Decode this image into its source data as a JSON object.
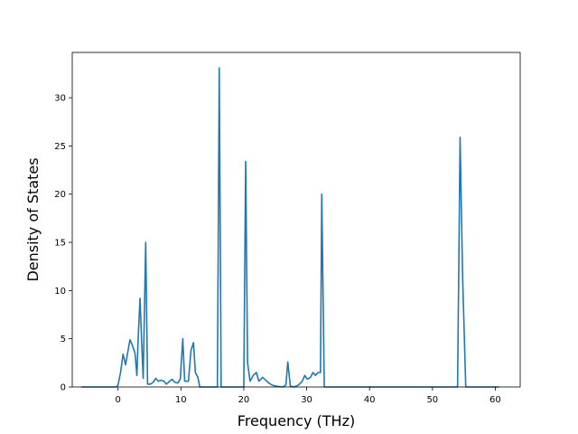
{
  "chart_data": {
    "type": "line",
    "title": "",
    "xlabel": "Frequency (THz)",
    "ylabel": "Density of States",
    "xlim": [
      -7.28,
      63.96
    ],
    "ylim": [
      0,
      34.7
    ],
    "xticks": [
      0,
      10,
      20,
      30,
      40,
      50,
      60
    ],
    "yticks": [
      0,
      5,
      10,
      15,
      20,
      25,
      30
    ],
    "grid": false,
    "legend": "none",
    "series": [
      {
        "color": "#1f77b4",
        "points": [
          [
            -5.8,
            0.0
          ],
          [
            -0.3,
            0.0
          ],
          [
            0.0,
            0.2
          ],
          [
            0.4,
            1.5
          ],
          [
            0.8,
            3.4
          ],
          [
            1.2,
            2.3
          ],
          [
            1.6,
            3.8
          ],
          [
            1.9,
            4.9
          ],
          [
            2.3,
            4.3
          ],
          [
            2.7,
            3.5
          ],
          [
            3.0,
            1.2
          ],
          [
            3.2,
            5.0
          ],
          [
            3.5,
            9.2
          ],
          [
            3.8,
            4.0
          ],
          [
            4.0,
            0.9
          ],
          [
            4.4,
            15.0
          ],
          [
            4.7,
            0.3
          ],
          [
            5.2,
            0.3
          ],
          [
            5.6,
            0.5
          ],
          [
            6.0,
            0.9
          ],
          [
            6.4,
            0.6
          ],
          [
            6.8,
            0.7
          ],
          [
            7.3,
            0.6
          ],
          [
            7.7,
            0.3
          ],
          [
            8.2,
            0.6
          ],
          [
            8.6,
            0.8
          ],
          [
            9.0,
            0.5
          ],
          [
            9.5,
            0.4
          ],
          [
            9.9,
            0.8
          ],
          [
            10.3,
            5.0
          ],
          [
            10.6,
            0.6
          ],
          [
            11.2,
            0.6
          ],
          [
            11.6,
            3.8
          ],
          [
            12.0,
            4.6
          ],
          [
            12.3,
            1.5
          ],
          [
            12.7,
            1.0
          ],
          [
            13.0,
            0.0
          ],
          [
            15.8,
            0.0
          ],
          [
            16.1,
            33.1
          ],
          [
            16.4,
            0.0
          ],
          [
            20.0,
            0.0
          ],
          [
            20.3,
            23.4
          ],
          [
            20.6,
            2.5
          ],
          [
            21.0,
            0.6
          ],
          [
            21.5,
            1.2
          ],
          [
            22.0,
            1.5
          ],
          [
            22.4,
            0.6
          ],
          [
            23.0,
            1.0
          ],
          [
            23.5,
            0.7
          ],
          [
            24.0,
            0.4
          ],
          [
            24.5,
            0.2
          ],
          [
            25.0,
            0.1
          ],
          [
            26.2,
            0.0
          ],
          [
            26.7,
            0.2
          ],
          [
            27.0,
            2.6
          ],
          [
            27.4,
            0.1
          ],
          [
            28.0,
            0.0
          ],
          [
            28.7,
            0.2
          ],
          [
            29.3,
            0.6
          ],
          [
            29.7,
            1.2
          ],
          [
            30.1,
            0.8
          ],
          [
            30.6,
            1.0
          ],
          [
            31.0,
            1.5
          ],
          [
            31.4,
            1.2
          ],
          [
            31.8,
            1.5
          ],
          [
            32.2,
            1.5
          ],
          [
            32.4,
            20.0
          ],
          [
            32.8,
            0.0
          ],
          [
            54.0,
            0.0
          ],
          [
            54.4,
            25.9
          ],
          [
            54.8,
            11.5
          ],
          [
            55.3,
            0.0
          ],
          [
            60.6,
            0.0
          ]
        ]
      }
    ]
  }
}
